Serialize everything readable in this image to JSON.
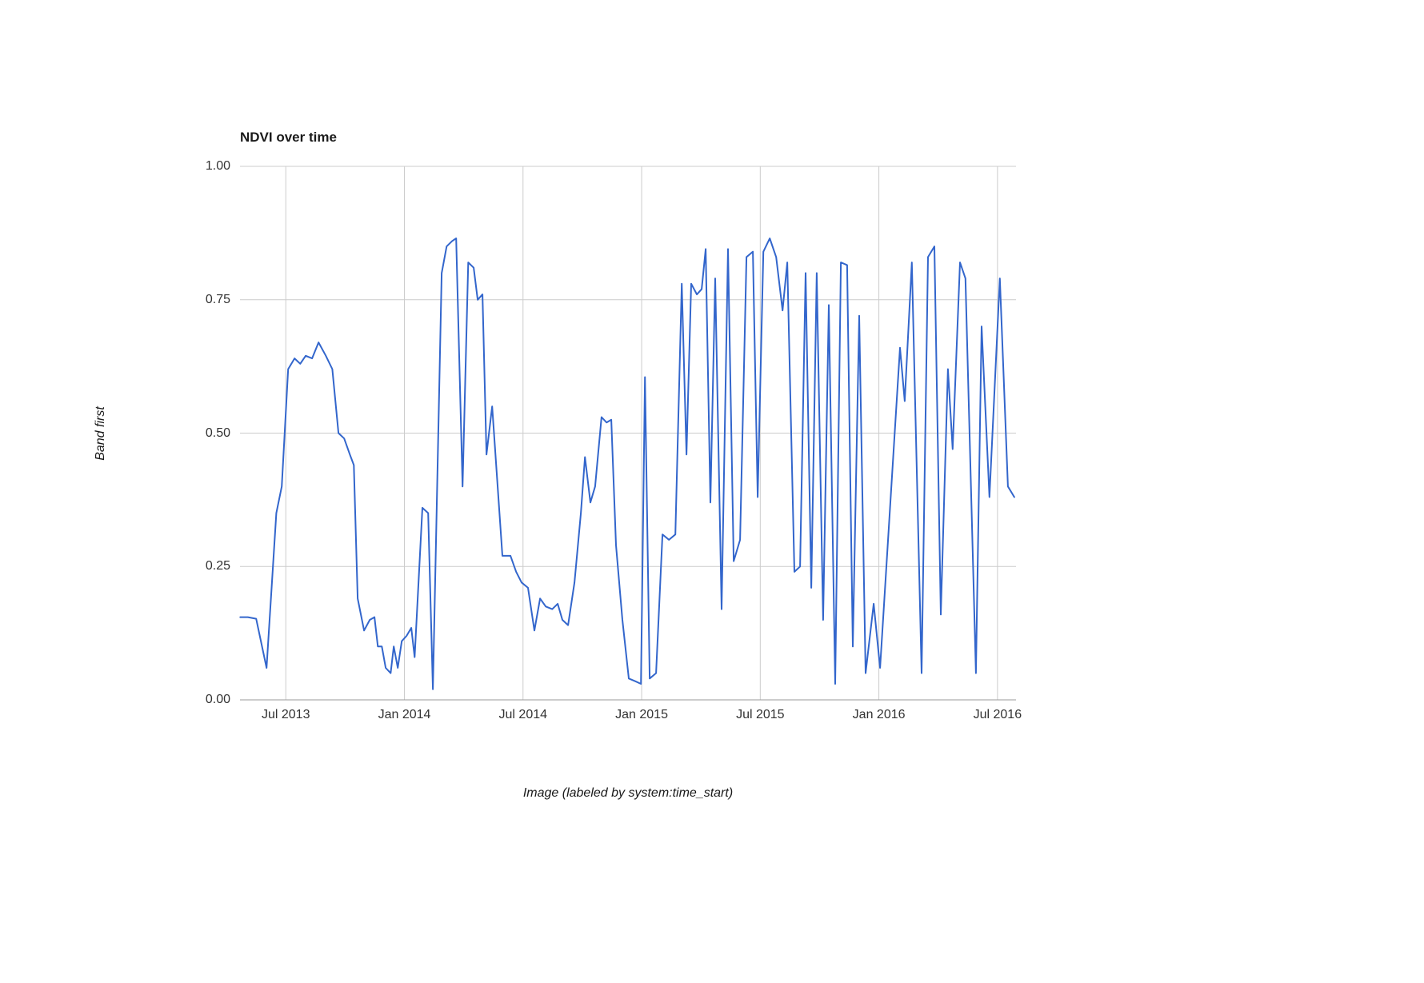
{
  "page": {
    "background": "#ffffff"
  },
  "chart_data": {
    "type": "line",
    "title": "NDVI over time",
    "xlabel": "Image (labeled by system:time_start)",
    "ylabel": "Band first",
    "line_color": "#3366cc",
    "grid_color": "#cccccc",
    "baseline_color": "#9a9a9a",
    "legend": "none",
    "grid": true,
    "xlim": [
      2013.307,
      2016.578
    ],
    "ylim": [
      0,
      1
    ],
    "x_ticks": [
      {
        "t": 2013.5,
        "label": "Jul 2013"
      },
      {
        "t": 2014.0,
        "label": "Jan 2014"
      },
      {
        "t": 2014.5,
        "label": "Jul 2014"
      },
      {
        "t": 2015.0,
        "label": "Jan 2015"
      },
      {
        "t": 2015.5,
        "label": "Jul 2015"
      },
      {
        "t": 2016.0,
        "label": "Jan 2016"
      },
      {
        "t": 2016.5,
        "label": "Jul 2016"
      }
    ],
    "y_ticks": [
      {
        "v": 0.0,
        "label": "0.00"
      },
      {
        "v": 0.25,
        "label": "0.25"
      },
      {
        "v": 0.5,
        "label": "0.50"
      },
      {
        "v": 0.75,
        "label": "0.75"
      },
      {
        "v": 1.0,
        "label": "1.00"
      }
    ],
    "points": [
      [
        2013.308,
        0.155
      ],
      [
        2013.34,
        0.155
      ],
      [
        2013.375,
        0.152
      ],
      [
        2013.419,
        0.06
      ],
      [
        2013.46,
        0.35
      ],
      [
        2013.483,
        0.4
      ],
      [
        2013.51,
        0.62
      ],
      [
        2013.537,
        0.64
      ],
      [
        2013.561,
        0.63
      ],
      [
        2013.584,
        0.645
      ],
      [
        2013.611,
        0.64
      ],
      [
        2013.638,
        0.67
      ],
      [
        2013.669,
        0.645
      ],
      [
        2013.696,
        0.62
      ],
      [
        2013.722,
        0.5
      ],
      [
        2013.746,
        0.49
      ],
      [
        2013.77,
        0.46
      ],
      [
        2013.787,
        0.44
      ],
      [
        2013.803,
        0.19
      ],
      [
        2013.83,
        0.13
      ],
      [
        2013.854,
        0.15
      ],
      [
        2013.874,
        0.155
      ],
      [
        2013.888,
        0.1
      ],
      [
        2013.905,
        0.1
      ],
      [
        2013.921,
        0.06
      ],
      [
        2013.942,
        0.05
      ],
      [
        2013.955,
        0.1
      ],
      [
        2013.972,
        0.06
      ],
      [
        2013.989,
        0.11
      ],
      [
        2014.009,
        0.12
      ],
      [
        2014.029,
        0.135
      ],
      [
        2014.043,
        0.08
      ],
      [
        2014.076,
        0.36
      ],
      [
        2014.1,
        0.35
      ],
      [
        2014.12,
        0.02
      ],
      [
        2014.157,
        0.8
      ],
      [
        2014.178,
        0.85
      ],
      [
        2014.201,
        0.86
      ],
      [
        2014.218,
        0.865
      ],
      [
        2014.245,
        0.4
      ],
      [
        2014.269,
        0.82
      ],
      [
        2014.292,
        0.81
      ],
      [
        2014.309,
        0.75
      ],
      [
        2014.329,
        0.76
      ],
      [
        2014.346,
        0.46
      ],
      [
        2014.37,
        0.55
      ],
      [
        2014.413,
        0.27
      ],
      [
        2014.447,
        0.27
      ],
      [
        2014.471,
        0.24
      ],
      [
        2014.494,
        0.22
      ],
      [
        2014.521,
        0.21
      ],
      [
        2014.538,
        0.16
      ],
      [
        2014.548,
        0.13
      ],
      [
        2014.572,
        0.19
      ],
      [
        2014.596,
        0.175
      ],
      [
        2014.623,
        0.17
      ],
      [
        2014.646,
        0.18
      ],
      [
        2014.666,
        0.15
      ],
      [
        2014.69,
        0.14
      ],
      [
        2014.717,
        0.22
      ],
      [
        2014.744,
        0.35
      ],
      [
        2014.761,
        0.455
      ],
      [
        2014.784,
        0.37
      ],
      [
        2014.804,
        0.4
      ],
      [
        2014.831,
        0.53
      ],
      [
        2014.852,
        0.52
      ],
      [
        2014.872,
        0.525
      ],
      [
        2014.892,
        0.29
      ],
      [
        2014.919,
        0.15
      ],
      [
        2014.946,
        0.04
      ],
      [
        2014.973,
        0.035
      ],
      [
        2014.997,
        0.03
      ],
      [
        2015.014,
        0.605
      ],
      [
        2015.034,
        0.04
      ],
      [
        2015.061,
        0.05
      ],
      [
        2015.088,
        0.31
      ],
      [
        2015.115,
        0.3
      ],
      [
        2015.142,
        0.31
      ],
      [
        2015.169,
        0.78
      ],
      [
        2015.189,
        0.46
      ],
      [
        2015.209,
        0.78
      ],
      [
        2015.233,
        0.76
      ],
      [
        2015.253,
        0.77
      ],
      [
        2015.27,
        0.845
      ],
      [
        2015.29,
        0.37
      ],
      [
        2015.31,
        0.79
      ],
      [
        2015.337,
        0.17
      ],
      [
        2015.364,
        0.845
      ],
      [
        2015.388,
        0.26
      ],
      [
        2015.415,
        0.3
      ],
      [
        2015.442,
        0.83
      ],
      [
        2015.469,
        0.84
      ],
      [
        2015.489,
        0.38
      ],
      [
        2015.513,
        0.84
      ],
      [
        2015.54,
        0.865
      ],
      [
        2015.567,
        0.83
      ],
      [
        2015.594,
        0.73
      ],
      [
        2015.614,
        0.82
      ],
      [
        2015.644,
        0.24
      ],
      [
        2015.668,
        0.25
      ],
      [
        2015.691,
        0.8
      ],
      [
        2015.715,
        0.21
      ],
      [
        2015.738,
        0.8
      ],
      [
        2015.765,
        0.15
      ],
      [
        2015.789,
        0.74
      ],
      [
        2015.816,
        0.03
      ],
      [
        2015.84,
        0.82
      ],
      [
        2015.866,
        0.815
      ],
      [
        2015.89,
        0.1
      ],
      [
        2015.917,
        0.72
      ],
      [
        2015.944,
        0.05
      ],
      [
        2015.978,
        0.18
      ],
      [
        2016.005,
        0.06
      ],
      [
        2016.089,
        0.66
      ],
      [
        2016.109,
        0.56
      ],
      [
        2016.139,
        0.82
      ],
      [
        2016.18,
        0.05
      ],
      [
        2016.207,
        0.83
      ],
      [
        2016.234,
        0.85
      ],
      [
        2016.261,
        0.16
      ],
      [
        2016.291,
        0.62
      ],
      [
        2016.311,
        0.47
      ],
      [
        2016.342,
        0.82
      ],
      [
        2016.365,
        0.79
      ],
      [
        2016.409,
        0.05
      ],
      [
        2016.433,
        0.7
      ],
      [
        2016.466,
        0.38
      ],
      [
        2016.51,
        0.79
      ],
      [
        2016.544,
        0.4
      ],
      [
        2016.571,
        0.38
      ]
    ]
  }
}
